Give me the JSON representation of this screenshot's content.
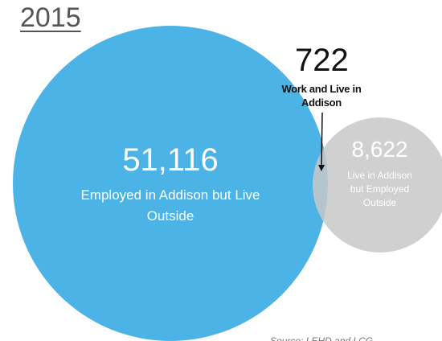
{
  "title": "2015",
  "overlap": {
    "value": "722",
    "label": "Work and Live in Addison"
  },
  "employed_outside": {
    "value": "51,116",
    "label": "Employed in Addison but Live Outside",
    "color": "#4BB3E6"
  },
  "live_employed_outside": {
    "value": "8,622",
    "label": "Live in Addison but Employed Outside",
    "color": "#C8C8C8"
  },
  "source": "Source: LEHD and LCG"
}
